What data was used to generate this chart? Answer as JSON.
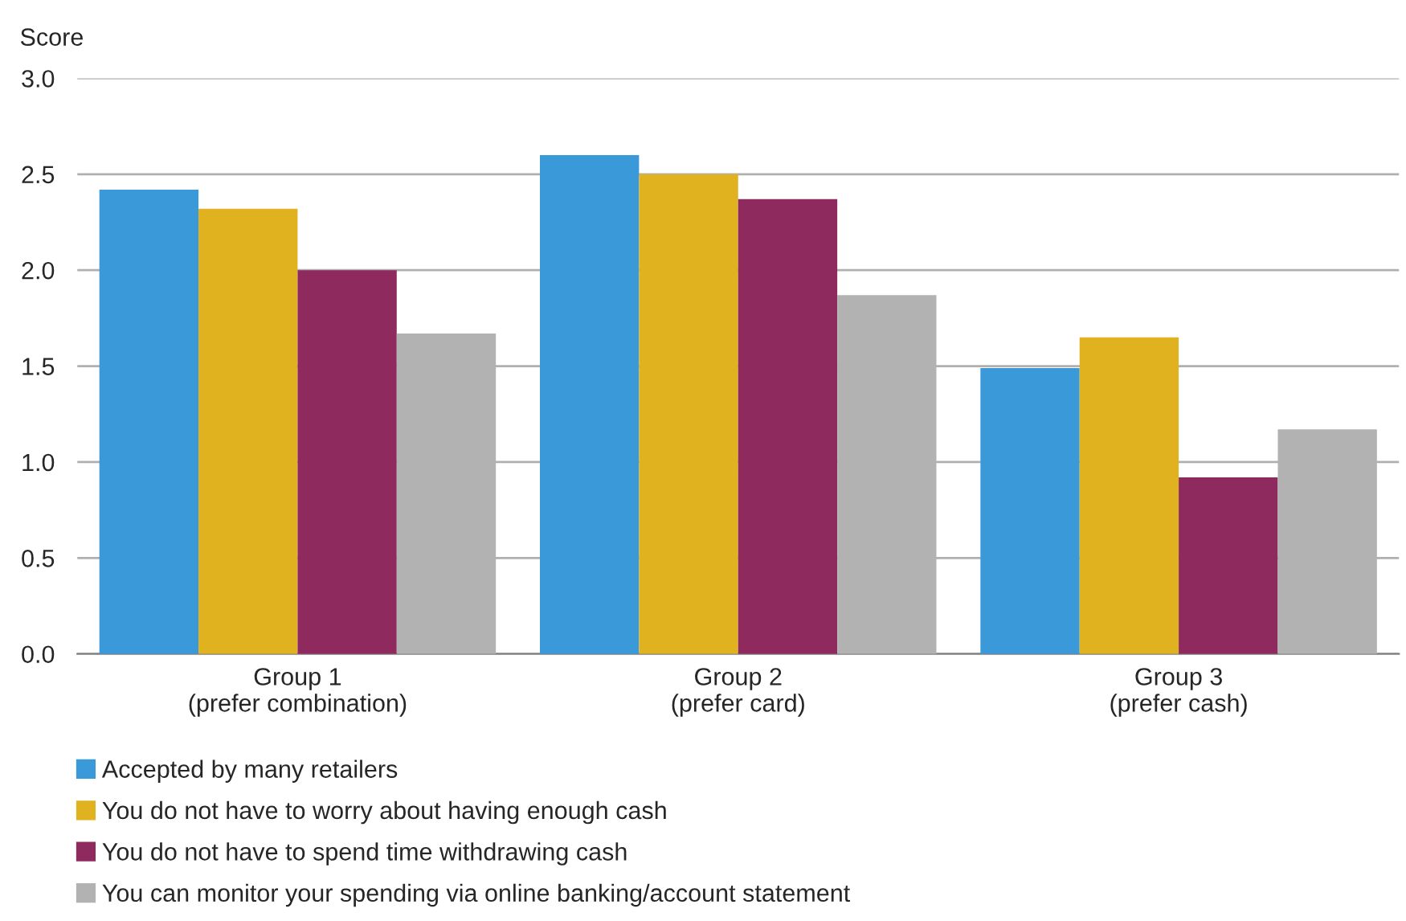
{
  "chart_data": {
    "type": "bar",
    "ylabel": "Score",
    "categories": [
      "Group 1\n(prefer combination)",
      "Group 2\n(prefer card)",
      "Group 3\n(prefer cash)"
    ],
    "series": [
      {
        "name": "Accepted by many retailers",
        "color": "#3a9ad9",
        "values": [
          2.42,
          2.6,
          1.49
        ]
      },
      {
        "name": "You do not have to worry about having enough cash",
        "color": "#e1b220",
        "values": [
          2.32,
          2.5,
          1.65
        ]
      },
      {
        "name": "You do not have to spend time withdrawing cash",
        "color": "#8f2a5e",
        "values": [
          2.0,
          2.37,
          0.92
        ]
      },
      {
        "name": "You can monitor your spending via online banking/account statement",
        "color": "#b2b2b2",
        "values": [
          1.67,
          1.87,
          1.17
        ]
      }
    ],
    "ylim": [
      0,
      3.0
    ],
    "yticks": [
      {
        "value": 0,
        "label": "0.0"
      },
      {
        "value": 0.5,
        "label": "0.5"
      },
      {
        "value": 1.0,
        "label": "1.0"
      },
      {
        "value": 1.5,
        "label": "1.5"
      },
      {
        "value": 2.0,
        "label": "2.0"
      },
      {
        "value": 2.5,
        "label": "2.5"
      },
      {
        "value": 3.0,
        "label": "3.0"
      }
    ],
    "grid": "y",
    "legend": "bottom"
  }
}
